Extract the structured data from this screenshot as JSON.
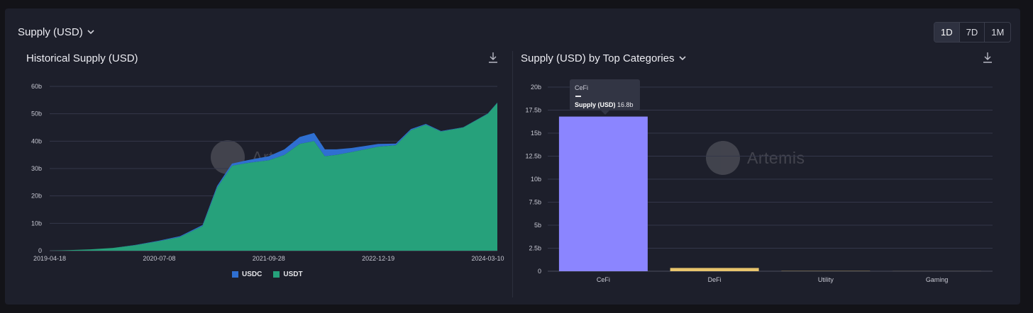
{
  "header": {
    "title": "Supply (USD)",
    "ranges": [
      "1D",
      "7D",
      "1M"
    ],
    "active_range": "1D"
  },
  "left_chart": {
    "title": "Historical Supply (USD)",
    "watermark": "Artemis"
  },
  "right_chart": {
    "title": "Supply (USD) by Top Categories",
    "watermark": "Artemis",
    "tooltip": {
      "category": "CeFi",
      "label": "Supply (USD)",
      "value": "16.8b"
    }
  },
  "colors": {
    "usdc": "#2f6fd1",
    "usdt": "#26a17b",
    "cefi": "#8b85ff",
    "defi": "#e8c56d",
    "grid": "#34374a",
    "axis_text": "#c7c8d2"
  },
  "chart_data": [
    {
      "type": "area",
      "title": "Historical Supply (USD)",
      "stacked": true,
      "x": [
        "2019-04-18",
        "2019-07-01",
        "2019-10-01",
        "2020-01-01",
        "2020-04-01",
        "2020-07-08",
        "2020-10-01",
        "2021-01-01",
        "2021-03-01",
        "2021-05-01",
        "2021-07-01",
        "2021-09-28",
        "2021-12-01",
        "2022-02-01",
        "2022-04-01",
        "2022-05-15",
        "2022-07-01",
        "2022-09-01",
        "2022-12-19",
        "2023-03-01",
        "2023-05-01",
        "2023-07-01",
        "2023-09-01",
        "2023-12-01",
        "2024-03-10",
        "2024-04-18"
      ],
      "series": [
        {
          "name": "USDT",
          "values": [
            0,
            0.2,
            0.5,
            1,
            2,
            3.5,
            5,
            9,
            23,
            31,
            32,
            33,
            35,
            39,
            40,
            34.5,
            35,
            36,
            38,
            38.5,
            44,
            46,
            43.5,
            45,
            50,
            54
          ]
        },
        {
          "name": "USDC",
          "values": [
            0,
            0,
            0,
            0,
            0.1,
            0.2,
            0.3,
            0.4,
            0.6,
            0.8,
            1,
            1.5,
            2,
            2.5,
            3,
            2.5,
            2,
            1.5,
            1,
            0.6,
            0.4,
            0.3,
            0.2,
            0.1,
            0.1,
            0.1
          ]
        }
      ],
      "xticks": [
        "2019-04-18",
        "2020-07-08",
        "2021-09-28",
        "2022-12-19",
        "2024-03-10"
      ],
      "yticks": [
        "0",
        "10b",
        "20b",
        "30b",
        "40b",
        "50b",
        "60b"
      ],
      "ylim": [
        0,
        60
      ],
      "legend": [
        "USDC",
        "USDT"
      ]
    },
    {
      "type": "bar",
      "title": "Supply (USD) by Top Categories",
      "categories": [
        "CeFi",
        "DeFi",
        "Utility",
        "Gaming"
      ],
      "values": [
        16.8,
        0.35,
        0.02,
        0.01
      ],
      "yticks": [
        "0",
        "2.5b",
        "5b",
        "7.5b",
        "10b",
        "12.5b",
        "15b",
        "17.5b",
        "20b"
      ],
      "ylim": [
        0,
        20
      ]
    }
  ]
}
